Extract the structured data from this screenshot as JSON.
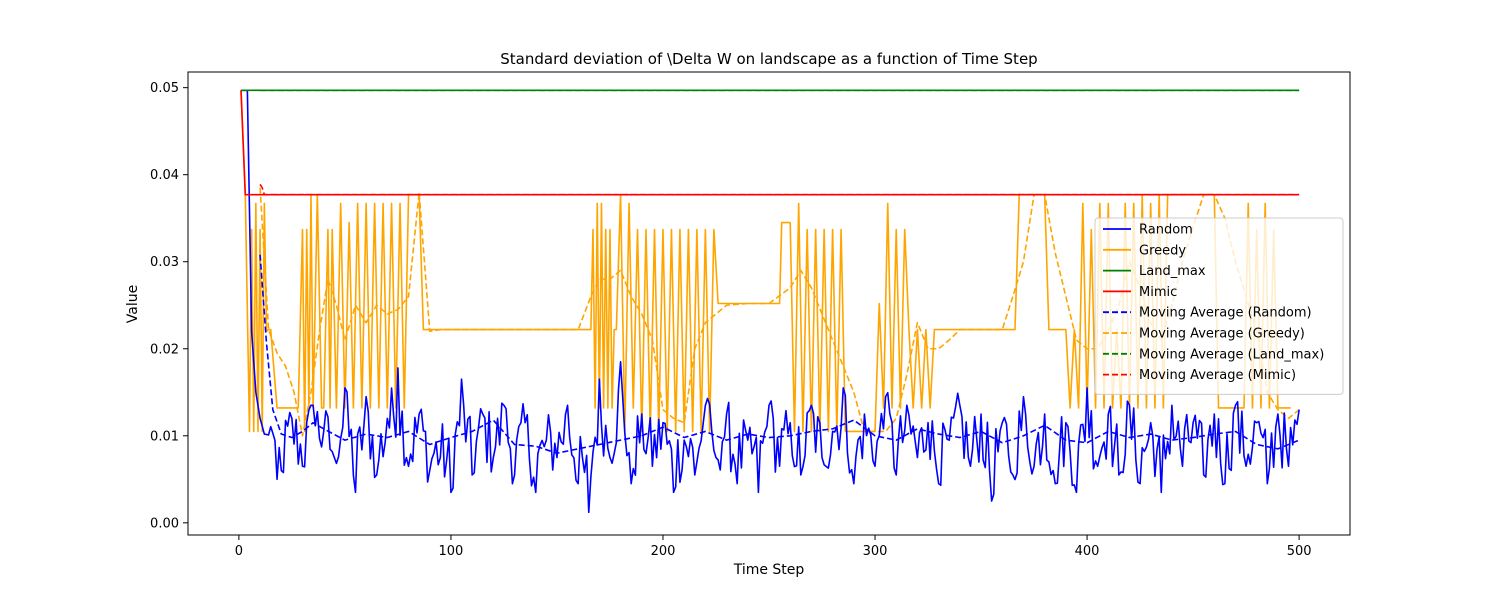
{
  "chart_data": {
    "type": "line",
    "title": "Standard deviation of \\Delta W on landscape as a function of Time Step",
    "xlabel": "Time Step",
    "ylabel": "Value",
    "xlim": [
      -24,
      524
    ],
    "ylim": [
      -0.0014,
      0.0518
    ],
    "xticks": [
      0,
      100,
      200,
      300,
      400,
      500
    ],
    "xtick_labels": [
      "0",
      "100",
      "200",
      "300",
      "400",
      "500"
    ],
    "yticks": [
      0.0,
      0.01,
      0.02,
      0.03,
      0.04,
      0.05
    ],
    "ytick_labels": [
      "0.00",
      "0.01",
      "0.02",
      "0.03",
      "0.04",
      "0.05"
    ],
    "grid": false,
    "legend_position": "right",
    "colors": {
      "Random": "#0000ff",
      "Greedy": "#ffa500",
      "Land_max": "#008000",
      "Mimic": "#ff0000"
    },
    "legend": [
      {
        "label": "Random",
        "color": "#0000ff",
        "style": "solid"
      },
      {
        "label": "Greedy",
        "color": "#ffa500",
        "style": "solid"
      },
      {
        "label": "Land_max",
        "color": "#008000",
        "style": "solid"
      },
      {
        "label": "Mimic",
        "color": "#ff0000",
        "style": "solid"
      },
      {
        "label": "Moving Average (Random)",
        "color": "#0000ff",
        "style": "dashed"
      },
      {
        "label": "Moving Average (Greedy)",
        "color": "#ffa500",
        "style": "dashed"
      },
      {
        "label": "Moving Average (Land_max)",
        "color": "#008000",
        "style": "dashed"
      },
      {
        "label": "Moving Average (Mimic)",
        "color": "#ff0000",
        "style": "dashed"
      }
    ],
    "series": [
      {
        "name": "Random",
        "color": "#0000ff",
        "style": "solid",
        "x_range": [
          1,
          500
        ],
        "points_x": [
          1,
          4,
          6,
          8,
          10,
          12,
          14,
          16,
          18,
          20,
          25,
          30,
          35,
          40,
          45,
          50,
          55,
          60,
          65,
          70,
          75,
          80,
          85,
          90,
          95,
          100,
          105,
          110,
          115,
          120,
          125,
          130,
          135,
          140,
          145,
          150,
          155,
          160,
          165,
          170,
          175,
          180,
          185,
          190,
          195,
          200,
          205,
          210,
          215,
          220,
          225,
          230,
          235,
          240,
          245,
          250,
          255,
          260,
          265,
          270,
          275,
          280,
          285,
          290,
          295,
          300,
          305,
          310,
          315,
          320,
          325,
          330,
          335,
          340,
          345,
          350,
          355,
          360,
          365,
          370,
          375,
          380,
          385,
          390,
          395,
          400,
          405,
          410,
          415,
          420,
          425,
          430,
          435,
          440,
          445,
          450,
          455,
          460,
          465,
          470,
          475,
          480,
          485,
          490,
          495,
          500
        ],
        "points_y": [
          0.0497,
          0.0497,
          0.022,
          0.015,
          0.012,
          0.0102,
          0.0101,
          0.0103,
          0.005,
          0.006,
          0.012,
          0.0065,
          0.0135,
          0.0105,
          0.0075,
          0.0155,
          0.0035,
          0.0145,
          0.0055,
          0.012,
          0.0178,
          0.0065,
          0.0125,
          0.006,
          0.0075,
          0.0035,
          0.0165,
          0.0055,
          0.0125,
          0.0075,
          0.0135,
          0.0055,
          0.0115,
          0.0035,
          0.0095,
          0.0075,
          0.0135,
          0.0045,
          0.0012,
          0.0165,
          0.0075,
          0.0185,
          0.0045,
          0.0125,
          0.0065,
          0.0115,
          0.0035,
          0.0095,
          0.0055,
          0.0135,
          0.0075,
          0.0125,
          0.0045,
          0.0095,
          0.0035,
          0.0135,
          0.0065,
          0.0115,
          0.0055,
          0.0135,
          0.0075,
          0.0105,
          0.0155,
          0.0045,
          0.0125,
          0.0065,
          0.0145,
          0.0055,
          0.0135,
          0.0075,
          0.0115,
          0.0045,
          0.0095,
          0.0135,
          0.0065,
          0.0125,
          0.0025,
          0.0115,
          0.0055,
          0.0145,
          0.0065,
          0.0125,
          0.0045,
          0.0115,
          0.0035,
          0.0155,
          0.0065,
          0.0125,
          0.0055,
          0.0135,
          0.0045,
          0.0115,
          0.0035,
          0.0135,
          0.0065,
          0.0115,
          0.0055,
          0.0125,
          0.0045,
          0.0135,
          0.0065,
          0.0115,
          0.0045,
          0.0125,
          0.0065,
          0.013
        ]
      },
      {
        "name": "Greedy",
        "color": "#ffa500",
        "style": "solid",
        "points_x": [
          1,
          3,
          5,
          6,
          7,
          8,
          9,
          10,
          11,
          12,
          13,
          14,
          15,
          18,
          20,
          25,
          28,
          30,
          31,
          32,
          33,
          34,
          35,
          37,
          39,
          40,
          42,
          43,
          44,
          46,
          48,
          50,
          52,
          54,
          56,
          58,
          60,
          62,
          64,
          66,
          68,
          70,
          72,
          74,
          76,
          78,
          80,
          85,
          87,
          90,
          100,
          120,
          140,
          160,
          166,
          167,
          168,
          169,
          170,
          171,
          172,
          173,
          174,
          175,
          176,
          177,
          178,
          180,
          182,
          184,
          186,
          188,
          190,
          192,
          194,
          196,
          198,
          200,
          202,
          204,
          206,
          208,
          210,
          212,
          214,
          216,
          218,
          220,
          222,
          224,
          226,
          240,
          255,
          256,
          258,
          260,
          262,
          264,
          266,
          268,
          270,
          272,
          274,
          276,
          278,
          280,
          282,
          284,
          286,
          288,
          290,
          292,
          294,
          296,
          298,
          300,
          302,
          304,
          306,
          308,
          310,
          312,
          314,
          316,
          318,
          320,
          322,
          324,
          326,
          328,
          330,
          340,
          350,
          360,
          366,
          368,
          370,
          372,
          374,
          376,
          378,
          380,
          382,
          384,
          386,
          388,
          390,
          392,
          394,
          396,
          398,
          400,
          402,
          404,
          406,
          408,
          410,
          412,
          414,
          416,
          418,
          420,
          422,
          424,
          426,
          428,
          430,
          432,
          434,
          436,
          438,
          440,
          442,
          444,
          446,
          448,
          450,
          452,
          454,
          456,
          458,
          460,
          462,
          464,
          466,
          468,
          470,
          472,
          474,
          476,
          478,
          480,
          482,
          484,
          486,
          488,
          490,
          492,
          494,
          496,
          498,
          500
        ],
        "points_y": [
          0.0497,
          0.038,
          0.0105,
          0.0337,
          0.0105,
          0.0367,
          0.0105,
          0.0337,
          0.0105,
          0.0367,
          0.022,
          0.0222,
          0.0222,
          0.0132,
          0.0132,
          0.0132,
          0.0132,
          0.0337,
          0.0105,
          0.0337,
          0.0132,
          0.0377,
          0.0132,
          0.0377,
          0.0132,
          0.0132,
          0.0337,
          0.0132,
          0.0337,
          0.0132,
          0.0367,
          0.0132,
          0.0345,
          0.0132,
          0.0367,
          0.0132,
          0.0367,
          0.0132,
          0.0367,
          0.0132,
          0.0367,
          0.0132,
          0.0367,
          0.0132,
          0.0367,
          0.0132,
          0.0377,
          0.0377,
          0.0222,
          0.0222,
          0.0222,
          0.0222,
          0.0222,
          0.0222,
          0.0222,
          0.0337,
          0.0132,
          0.0367,
          0.0132,
          0.0367,
          0.0132,
          0.0337,
          0.0132,
          0.0337,
          0.0132,
          0.0222,
          0.0222,
          0.0377,
          0.0105,
          0.0367,
          0.0132,
          0.0337,
          0.0105,
          0.0337,
          0.0105,
          0.0337,
          0.0105,
          0.0337,
          0.0105,
          0.0337,
          0.0105,
          0.0337,
          0.0105,
          0.0337,
          0.0105,
          0.0337,
          0.0105,
          0.0337,
          0.0105,
          0.0337,
          0.0252,
          0.0252,
          0.0252,
          0.0345,
          0.0345,
          0.0345,
          0.0105,
          0.0367,
          0.0105,
          0.0337,
          0.0105,
          0.0337,
          0.0105,
          0.0337,
          0.0105,
          0.0337,
          0.0105,
          0.0337,
          0.0105,
          0.0105,
          0.0105,
          0.0105,
          0.0105,
          0.0105,
          0.0105,
          0.0105,
          0.0252,
          0.0132,
          0.0367,
          0.0132,
          0.0337,
          0.0132,
          0.0337,
          0.0222,
          0.0132,
          0.0222,
          0.0132,
          0.0222,
          0.0132,
          0.0222,
          0.0222,
          0.0222,
          0.0222,
          0.0222,
          0.0222,
          0.0377,
          0.0377,
          0.0377,
          0.0377,
          0.0377,
          0.0377,
          0.0377,
          0.0222,
          0.0222,
          0.0222,
          0.0222,
          0.0222,
          0.0132,
          0.0222,
          0.0132,
          0.0367,
          0.0132,
          0.0337,
          0.0132,
          0.0367,
          0.0132,
          0.0367,
          0.0132,
          0.0222,
          0.0132,
          0.0367,
          0.0132,
          0.0367,
          0.0132,
          0.0377,
          0.0132,
          0.0367,
          0.0132,
          0.0377,
          0.0132,
          0.0377,
          0.0377,
          0.0377,
          0.0377,
          0.0377,
          0.0377,
          0.0377,
          0.0377,
          0.0377,
          0.0377,
          0.0377,
          0.0377,
          0.0132,
          0.0132,
          0.0132,
          0.0132,
          0.0132,
          0.0132,
          0.0132,
          0.0367,
          0.0132,
          0.0337,
          0.0132,
          0.0367,
          0.0132,
          0.0337,
          0.0132,
          0.0132,
          0.0132,
          0.0132
        ]
      },
      {
        "name": "Land_max",
        "color": "#008000",
        "style": "solid",
        "points_x": [
          1,
          500
        ],
        "points_y": [
          0.0497,
          0.0497
        ]
      },
      {
        "name": "Mimic",
        "color": "#ff0000",
        "style": "solid",
        "points_x": [
          1,
          3,
          500
        ],
        "points_y": [
          0.0497,
          0.0377,
          0.0377
        ]
      },
      {
        "name": "Moving Average (Random)",
        "color": "#0000ff",
        "style": "dashed",
        "points_x": [
          10,
          13,
          16,
          20,
          25,
          30,
          35,
          40,
          50,
          60,
          70,
          80,
          90,
          100,
          110,
          120,
          130,
          140,
          150,
          160,
          170,
          180,
          190,
          200,
          210,
          220,
          230,
          240,
          250,
          260,
          270,
          280,
          290,
          300,
          310,
          320,
          330,
          340,
          350,
          360,
          370,
          380,
          390,
          400,
          410,
          420,
          430,
          440,
          450,
          460,
          470,
          480,
          490,
          500
        ],
        "points_y": [
          0.0308,
          0.0207,
          0.013,
          0.0102,
          0.0098,
          0.0105,
          0.0115,
          0.0108,
          0.0095,
          0.0102,
          0.0098,
          0.0105,
          0.009,
          0.0098,
          0.0105,
          0.0118,
          0.009,
          0.0088,
          0.008,
          0.0085,
          0.009,
          0.0095,
          0.01,
          0.011,
          0.0098,
          0.0105,
          0.0095,
          0.0102,
          0.0098,
          0.01,
          0.0105,
          0.0108,
          0.0118,
          0.01,
          0.0095,
          0.0108,
          0.0102,
          0.0098,
          0.0105,
          0.0092,
          0.01,
          0.0112,
          0.0095,
          0.0092,
          0.0105,
          0.0098,
          0.0102,
          0.0095,
          0.0098,
          0.0102,
          0.0105,
          0.009,
          0.0085,
          0.0095
        ]
      },
      {
        "name": "Moving Average (Greedy)",
        "color": "#ffa500",
        "style": "dashed",
        "points_x": [
          10,
          14,
          18,
          22,
          26,
          30,
          34,
          38,
          42,
          46,
          50,
          55,
          60,
          65,
          70,
          75,
          80,
          85,
          90,
          95,
          100,
          120,
          140,
          160,
          166,
          170,
          175,
          180,
          185,
          190,
          195,
          200,
          205,
          210,
          215,
          220,
          225,
          230,
          240,
          250,
          260,
          265,
          270,
          275,
          280,
          285,
          290,
          295,
          300,
          305,
          310,
          315,
          320,
          325,
          330,
          335,
          340,
          350,
          360,
          365,
          370,
          375,
          380,
          385,
          390,
          395,
          400,
          405,
          410,
          415,
          420,
          425,
          430,
          435,
          440,
          445,
          450,
          455,
          460,
          465,
          470,
          475,
          480,
          485,
          490,
          495,
          500
        ],
        "points_y": [
          0.0385,
          0.0222,
          0.0195,
          0.018,
          0.015,
          0.01,
          0.015,
          0.022,
          0.028,
          0.025,
          0.021,
          0.025,
          0.023,
          0.025,
          0.024,
          0.0245,
          0.026,
          0.038,
          0.022,
          0.0222,
          0.0222,
          0.0222,
          0.0222,
          0.0222,
          0.026,
          0.028,
          0.028,
          0.029,
          0.026,
          0.024,
          0.021,
          0.013,
          0.012,
          0.0115,
          0.02,
          0.023,
          0.024,
          0.025,
          0.0252,
          0.0252,
          0.027,
          0.029,
          0.027,
          0.024,
          0.021,
          0.018,
          0.015,
          0.0105,
          0.0105,
          0.0105,
          0.012,
          0.017,
          0.023,
          0.02,
          0.02,
          0.021,
          0.0222,
          0.0222,
          0.0222,
          0.026,
          0.03,
          0.0377,
          0.0377,
          0.031,
          0.026,
          0.021,
          0.02,
          0.02,
          0.022,
          0.025,
          0.03,
          0.027,
          0.023,
          0.021,
          0.025,
          0.03,
          0.034,
          0.0377,
          0.0377,
          0.035,
          0.03,
          0.026,
          0.022,
          0.015,
          0.013,
          0.012,
          0.013
        ]
      },
      {
        "name": "Moving Average (Land_max)",
        "color": "#008000",
        "style": "dashed",
        "points_x": [
          10,
          500
        ],
        "points_y": [
          0.0497,
          0.0497
        ]
      },
      {
        "name": "Moving Average (Mimic)",
        "color": "#ff0000",
        "style": "dashed",
        "points_x": [
          10,
          11,
          12,
          500
        ],
        "points_y": [
          0.0389,
          0.0385,
          0.0377,
          0.0377
        ]
      }
    ]
  }
}
